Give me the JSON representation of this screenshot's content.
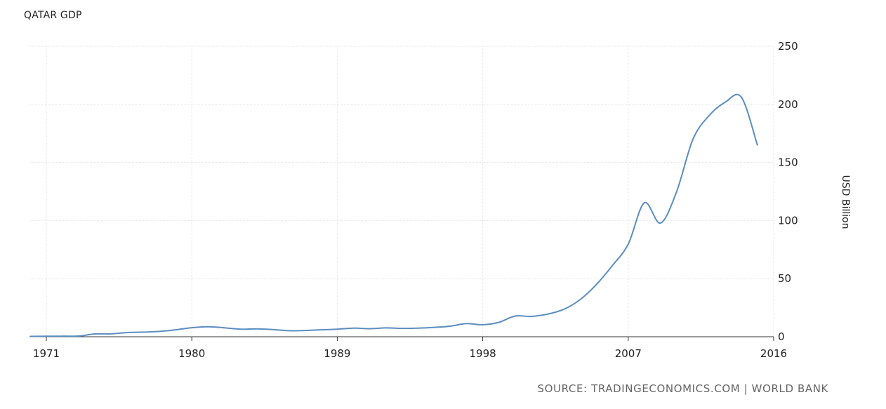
{
  "chart_data": {
    "type": "line",
    "title": "QATAR GDP",
    "ylabel": "USD Billion",
    "source": "SOURCE: TRADINGECONOMICS.COM | WORLD BANK",
    "xlim": [
      1970,
      2016
    ],
    "ylim": [
      0,
      250
    ],
    "x_ticks": [
      1971,
      1980,
      1989,
      1998,
      2007,
      2016
    ],
    "y_ticks": [
      0,
      50,
      100,
      150,
      200,
      250
    ],
    "grid": true,
    "color": "#5b8dc0",
    "series": [
      {
        "x": [
          1970,
          1971,
          1972,
          1973,
          1974,
          1975,
          1976,
          1977,
          1978,
          1979,
          1980,
          1981,
          1982,
          1983,
          1984,
          1985,
          1986,
          1987,
          1988,
          1989,
          1990,
          1991,
          1992,
          1993,
          1994,
          1995,
          1996,
          1997,
          1998,
          1999,
          2000,
          2001,
          2002,
          2003,
          2004,
          2005,
          2006,
          2007,
          2008,
          2009,
          2010,
          2011,
          2012,
          2013,
          2014,
          2015
        ],
        "values": [
          0.3,
          0.4,
          0.5,
          0.6,
          2.4,
          2.5,
          3.6,
          4.0,
          4.6,
          6.0,
          7.8,
          8.6,
          7.7,
          6.5,
          6.8,
          6.2,
          5.2,
          5.4,
          6.0,
          6.5,
          7.4,
          6.9,
          7.6,
          7.2,
          7.4,
          8.1,
          9.1,
          11.3,
          10.3,
          12.4,
          17.8,
          17.5,
          19.4,
          23.5,
          31.7,
          44.5,
          60.9,
          79.7,
          115.3,
          97.8,
          125.1,
          169.8,
          190.3,
          201.9,
          206.2,
          164.6
        ]
      }
    ]
  }
}
